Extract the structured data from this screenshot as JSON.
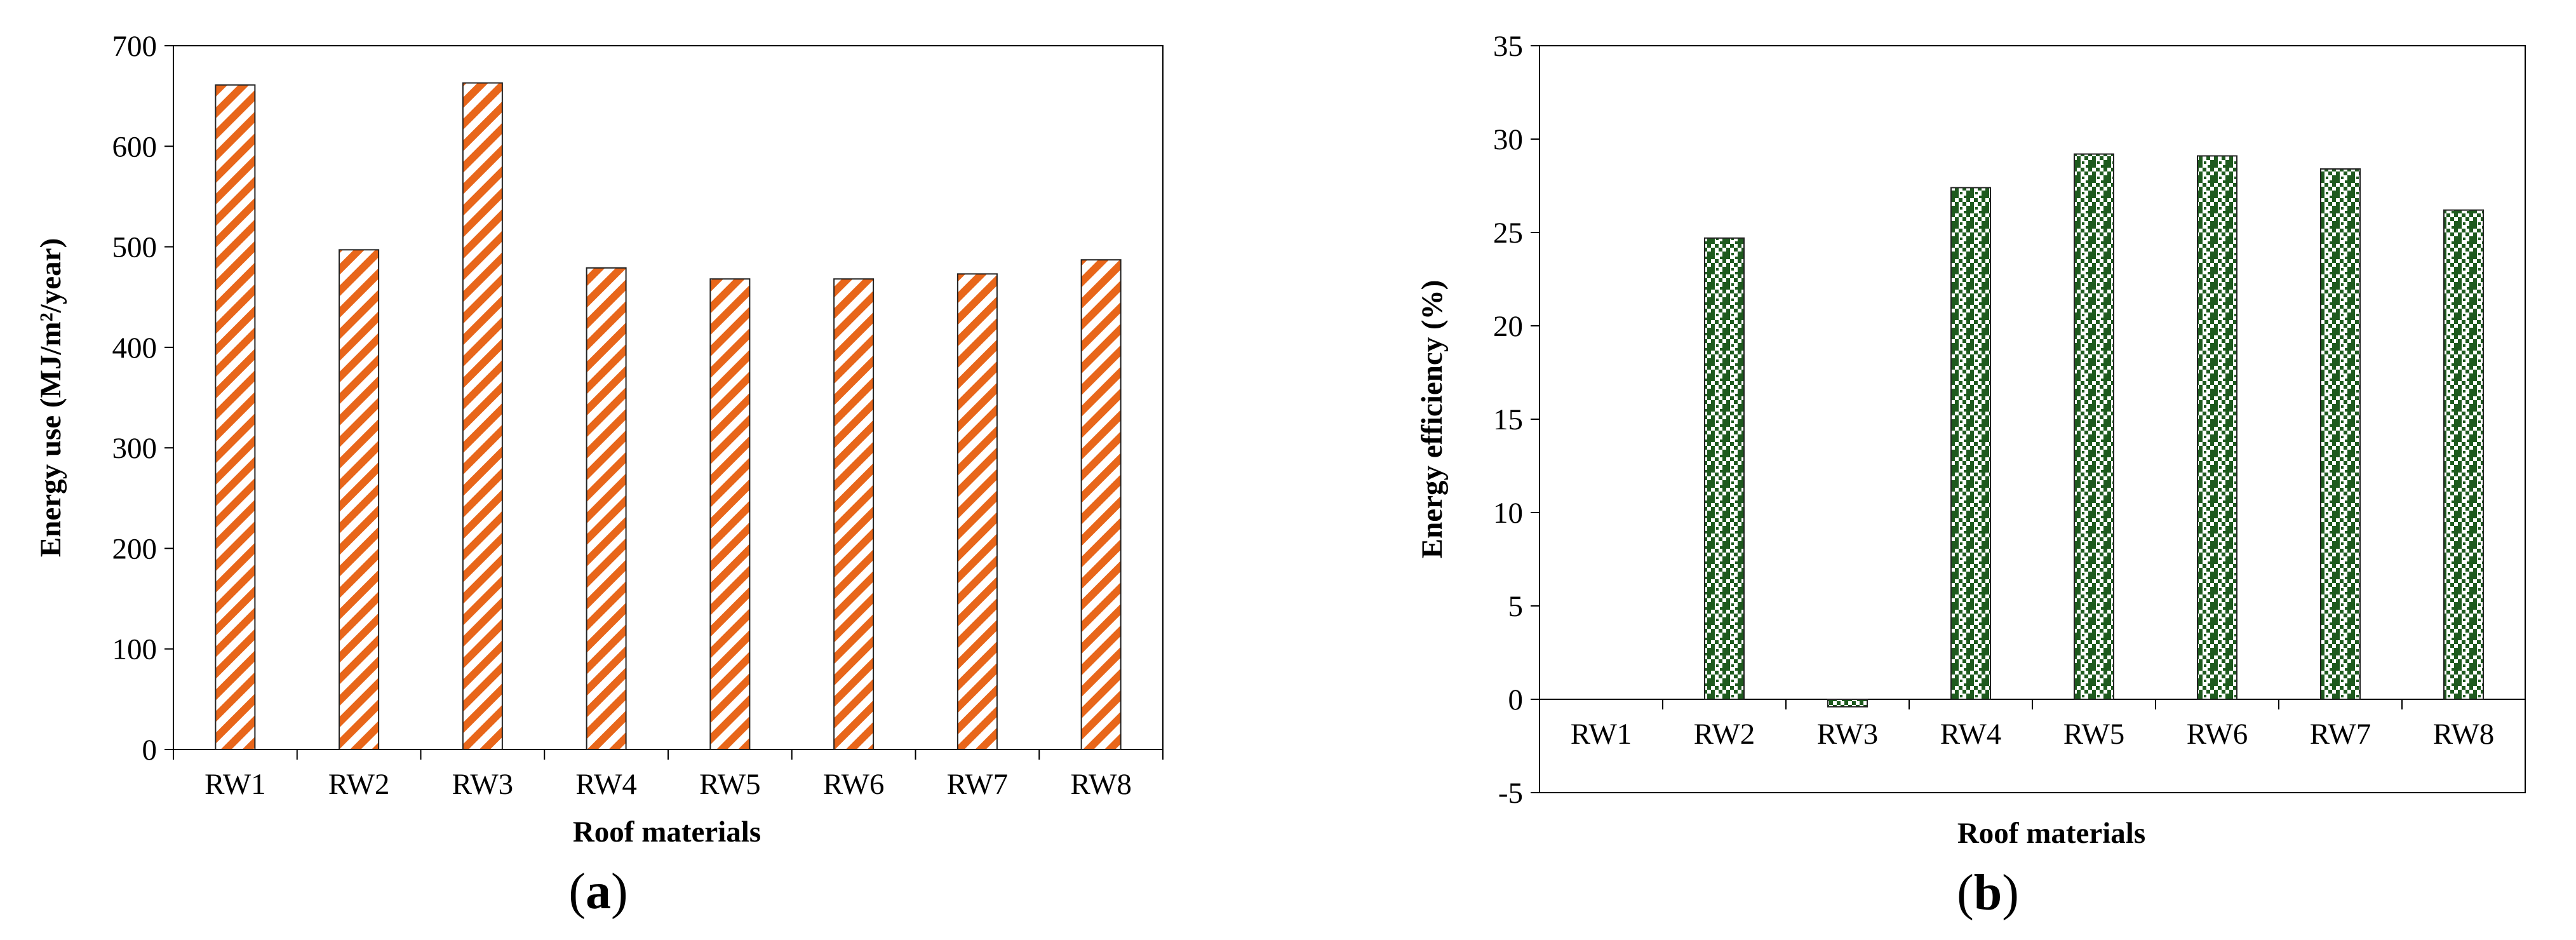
{
  "chart_data": [
    {
      "type": "bar",
      "panel_label": {
        "open": "(",
        "letter": "a",
        "close": ")"
      },
      "categories": [
        "RW1",
        "RW2",
        "RW3",
        "RW4",
        "RW5",
        "RW6",
        "RW7",
        "RW8"
      ],
      "values": [
        661,
        497,
        663,
        479,
        468,
        468,
        473,
        487
      ],
      "title": "",
      "xlabel": "Roof materials",
      "ylabel": "Energy use (MJ/m²/year)",
      "ylim": [
        0,
        700
      ],
      "yticks": [
        "0",
        "100",
        "200",
        "300",
        "400",
        "500",
        "600",
        "700"
      ],
      "grid": false,
      "color": "#e8661a",
      "pattern": "diagonal-stripes"
    },
    {
      "type": "bar",
      "panel_label": {
        "open": "(",
        "letter": "b",
        "close": ")"
      },
      "categories": [
        "RW1",
        "RW2",
        "RW3",
        "RW4",
        "RW5",
        "RW6",
        "RW7",
        "RW8"
      ],
      "values": [
        0,
        24.7,
        -0.4,
        27.4,
        29.2,
        29.1,
        28.4,
        26.2
      ],
      "title": "",
      "xlabel": "Roof materials",
      "ylabel": "Energy  efficiency (%)",
      "ylim": [
        -5,
        35
      ],
      "yticks": [
        "-5",
        "0",
        "5",
        "10",
        "15",
        "20",
        "25",
        "30",
        "35"
      ],
      "grid": false,
      "color": "#1e5a1e",
      "pattern": "checkerboard"
    }
  ]
}
